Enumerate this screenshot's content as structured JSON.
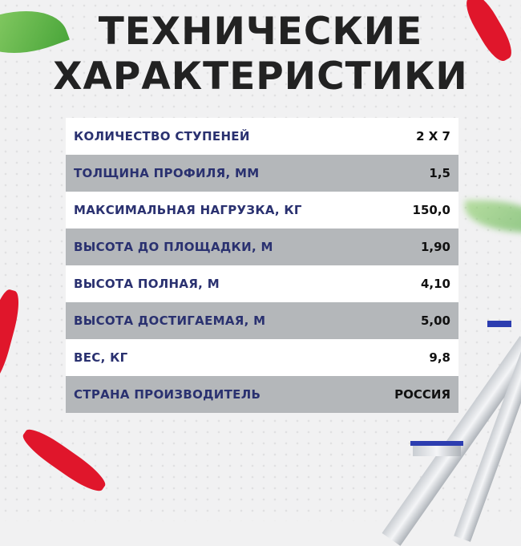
{
  "title": {
    "line1": "ТЕХНИЧЕСКИЕ",
    "line2": "ХАРАКТЕРИСТИКИ"
  },
  "specs": [
    {
      "label": "КОЛИЧЕСТВО СТУПЕНЕЙ",
      "value": "2 Х 7"
    },
    {
      "label": "ТОЛЩИНА ПРОФИЛЯ, ММ",
      "value": "1,5"
    },
    {
      "label": "МАКСИМАЛЬНАЯ НАГРУЗКА, КГ",
      "value": "150,0"
    },
    {
      "label": "ВЫСОТА ДО ПЛОЩАДКИ, М",
      "value": "1,90"
    },
    {
      "label": "ВЫСОТА ПОЛНАЯ, М",
      "value": "4,10"
    },
    {
      "label": "ВЫСОТА ДОСТИГАЕМАЯ, М",
      "value": "5,00"
    },
    {
      "label": "ВЕС, КГ",
      "value": "9,8"
    },
    {
      "label": "СТРАНА ПРОИЗВОДИТЕЛЬ",
      "value": "РОССИЯ"
    }
  ],
  "colors": {
    "label": "#2a3170",
    "row_alt": "#b4b7ba",
    "accent_red": "#e0162b"
  }
}
